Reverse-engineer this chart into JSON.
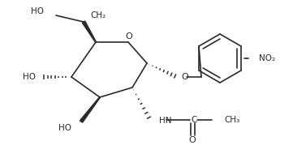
{
  "bg_color": "#ffffff",
  "line_color": "#2a2a2a",
  "line_width": 1.2,
  "font_size": 7.5,
  "fig_width": 3.61,
  "fig_height": 1.95,
  "dpi": 100,
  "ring_O": "O",
  "no2": "NO₂",
  "ho": "HO",
  "hn": "HN",
  "ch2": "CH₂",
  "ch3": "CH₃",
  "o_atom": "O",
  "c_atom": "C",
  "carbonyl_o": "O"
}
